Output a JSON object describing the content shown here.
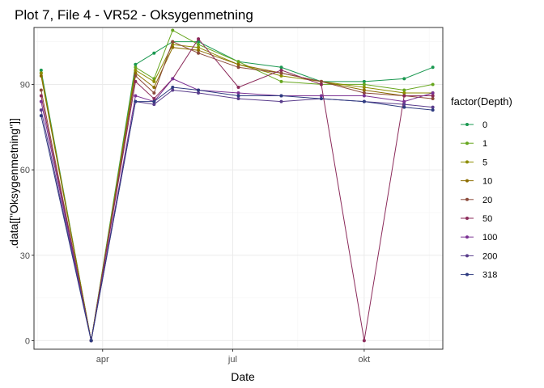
{
  "chart_data": {
    "type": "line",
    "title": "Plot 7, File 4 - VR52  -  Oksygenmetning",
    "xlabel": "Date",
    "ylabel": ".data[[\"Oksygenmetning\"]]",
    "ylim": [
      -3,
      110
    ],
    "xlim": [
      "2021-02-12",
      "2021-11-25"
    ],
    "x_ticks": [
      {
        "date": "2021-04-01",
        "label": "apr"
      },
      {
        "date": "2021-07-01",
        "label": "jul"
      },
      {
        "date": "2021-10-01",
        "label": "okt"
      }
    ],
    "y_ticks": [
      0,
      30,
      60,
      90
    ],
    "grid": true,
    "legend": {
      "title": "factor(Depth)",
      "placement": "right"
    },
    "series": [
      {
        "name": "0",
        "color": "#1a9850",
        "points": [
          [
            "2021-02-17",
            95
          ],
          [
            "2021-03-24",
            0
          ],
          [
            "2021-04-24",
            97
          ],
          [
            "2021-05-07",
            101
          ],
          [
            "2021-05-20",
            105
          ],
          [
            "2021-06-07",
            105
          ],
          [
            "2021-07-05",
            98
          ],
          [
            "2021-08-04",
            96
          ],
          [
            "2021-09-01",
            91
          ],
          [
            "2021-10-01",
            91
          ],
          [
            "2021-10-29",
            92
          ],
          [
            "2021-11-18",
            96
          ]
        ]
      },
      {
        "name": "1",
        "color": "#66a61e",
        "points": [
          [
            "2021-02-17",
            94
          ],
          [
            "2021-03-24",
            0
          ],
          [
            "2021-04-24",
            96
          ],
          [
            "2021-05-07",
            92
          ],
          [
            "2021-05-20",
            109
          ],
          [
            "2021-06-07",
            104
          ],
          [
            "2021-07-05",
            98
          ],
          [
            "2021-08-04",
            91
          ],
          [
            "2021-09-01",
            90
          ],
          [
            "2021-10-01",
            90
          ],
          [
            "2021-10-29",
            88
          ],
          [
            "2021-11-18",
            90
          ]
        ]
      },
      {
        "name": "5",
        "color": "#8c8c00",
        "points": [
          [
            "2021-02-17",
            94
          ],
          [
            "2021-03-24",
            0
          ],
          [
            "2021-04-24",
            95
          ],
          [
            "2021-05-07",
            91
          ],
          [
            "2021-05-20",
            104
          ],
          [
            "2021-06-07",
            103
          ],
          [
            "2021-07-05",
            97
          ],
          [
            "2021-08-04",
            93
          ],
          [
            "2021-09-01",
            91
          ],
          [
            "2021-10-01",
            89
          ],
          [
            "2021-10-29",
            87
          ],
          [
            "2021-11-18",
            87
          ]
        ]
      },
      {
        "name": "10",
        "color": "#8c6d00",
        "points": [
          [
            "2021-02-17",
            93
          ],
          [
            "2021-03-24",
            0
          ],
          [
            "2021-04-24",
            94
          ],
          [
            "2021-05-07",
            89
          ],
          [
            "2021-05-20",
            103
          ],
          [
            "2021-06-07",
            102
          ],
          [
            "2021-07-05",
            97
          ],
          [
            "2021-08-04",
            94
          ],
          [
            "2021-09-01",
            91
          ],
          [
            "2021-10-01",
            88
          ],
          [
            "2021-10-29",
            86
          ],
          [
            "2021-11-18",
            86
          ]
        ]
      },
      {
        "name": "20",
        "color": "#8b4a3a",
        "points": [
          [
            "2021-02-17",
            88
          ],
          [
            "2021-03-24",
            0
          ],
          [
            "2021-04-24",
            93
          ],
          [
            "2021-05-07",
            87
          ],
          [
            "2021-05-20",
            105
          ],
          [
            "2021-06-07",
            101
          ],
          [
            "2021-07-05",
            96
          ],
          [
            "2021-08-04",
            94
          ],
          [
            "2021-09-01",
            91
          ],
          [
            "2021-10-01",
            87
          ],
          [
            "2021-10-29",
            86
          ],
          [
            "2021-11-18",
            85
          ]
        ]
      },
      {
        "name": "50",
        "color": "#8b2a5a",
        "points": [
          [
            "2021-02-17",
            86
          ],
          [
            "2021-03-24",
            0
          ],
          [
            "2021-04-24",
            91
          ],
          [
            "2021-05-07",
            85
          ],
          [
            "2021-05-20",
            92
          ],
          [
            "2021-06-07",
            106
          ],
          [
            "2021-07-05",
            89
          ],
          [
            "2021-08-04",
            95
          ],
          [
            "2021-09-01",
            90
          ],
          [
            "2021-10-01",
            0
          ],
          [
            "2021-10-29",
            86
          ],
          [
            "2021-11-18",
            86
          ]
        ]
      },
      {
        "name": "100",
        "color": "#7b3294",
        "points": [
          [
            "2021-02-17",
            84
          ],
          [
            "2021-03-24",
            0
          ],
          [
            "2021-04-24",
            86
          ],
          [
            "2021-05-07",
            84
          ],
          [
            "2021-05-20",
            92
          ],
          [
            "2021-06-07",
            88
          ],
          [
            "2021-07-05",
            87
          ],
          [
            "2021-08-04",
            86
          ],
          [
            "2021-09-01",
            86
          ],
          [
            "2021-10-01",
            86
          ],
          [
            "2021-10-29",
            84
          ],
          [
            "2021-11-18",
            87
          ]
        ]
      },
      {
        "name": "200",
        "color": "#5a3d8c",
        "points": [
          [
            "2021-02-17",
            81
          ],
          [
            "2021-03-24",
            0
          ],
          [
            "2021-04-24",
            84
          ],
          [
            "2021-05-07",
            83
          ],
          [
            "2021-05-20",
            88
          ],
          [
            "2021-06-07",
            87
          ],
          [
            "2021-07-05",
            85
          ],
          [
            "2021-08-04",
            84
          ],
          [
            "2021-09-01",
            85
          ],
          [
            "2021-10-01",
            84
          ],
          [
            "2021-10-29",
            83
          ],
          [
            "2021-11-18",
            82
          ]
        ]
      },
      {
        "name": "318",
        "color": "#2e3b80",
        "points": [
          [
            "2021-02-17",
            79
          ],
          [
            "2021-03-24",
            0
          ],
          [
            "2021-04-24",
            84
          ],
          [
            "2021-05-07",
            84
          ],
          [
            "2021-05-20",
            89
          ],
          [
            "2021-06-07",
            88
          ],
          [
            "2021-07-05",
            86
          ],
          [
            "2021-08-04",
            86
          ],
          [
            "2021-09-01",
            85
          ],
          [
            "2021-10-01",
            84
          ],
          [
            "2021-10-29",
            82
          ],
          [
            "2021-11-18",
            81
          ]
        ]
      }
    ]
  }
}
